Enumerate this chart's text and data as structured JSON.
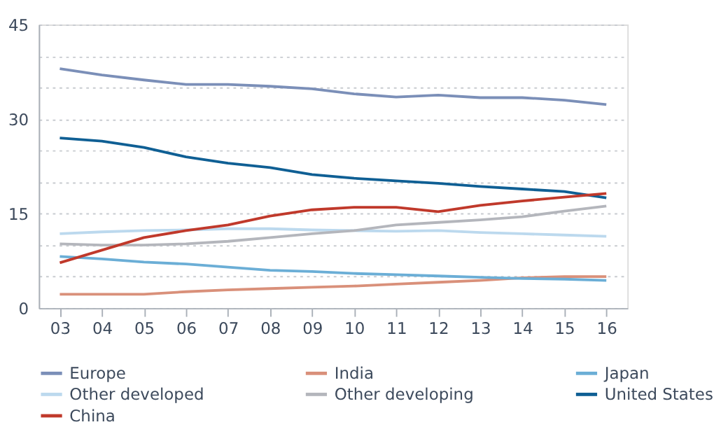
{
  "chart_data": {
    "type": "line",
    "categories": [
      "03",
      "04",
      "05",
      "06",
      "07",
      "08",
      "09",
      "10",
      "11",
      "12",
      "13",
      "14",
      "15",
      "16"
    ],
    "ylim": [
      0,
      45
    ],
    "yticks": [
      0,
      {
        "value": 5,
        "label": null
      },
      {
        "value": 10,
        "label": null
      },
      15,
      {
        "value": 20,
        "label": null
      },
      {
        "value": 25,
        "label": null
      },
      30,
      {
        "value": 35,
        "label": null
      },
      {
        "value": 40,
        "label": null
      },
      45
    ],
    "grid": "y",
    "legend": "bottom",
    "marker": "none",
    "line_style": "solid",
    "series": [
      {
        "name": "Europe",
        "color": "#7b8fb8",
        "values": [
          38,
          37,
          36.2,
          35.5,
          35.5,
          35.2,
          34.8,
          34,
          33.5,
          33.8,
          33.4,
          33.4,
          33,
          32.3
        ]
      },
      {
        "name": "India",
        "color": "#d9907a",
        "values": [
          2.2,
          2.2,
          2.2,
          2.6,
          2.9,
          3.1,
          3.3,
          3.5,
          3.8,
          4.1,
          4.4,
          4.8,
          5,
          5
        ]
      },
      {
        "name": "Japan",
        "color": "#6baed6",
        "values": [
          8.2,
          7.8,
          7.3,
          7.0,
          6.5,
          6,
          5.8,
          5.5,
          5.3,
          5.1,
          4.9,
          4.7,
          4.6,
          4.4
        ]
      },
      {
        "name": "Other developed",
        "color": "#bcd9ee",
        "values": [
          11.8,
          12.1,
          12.3,
          12.4,
          12.6,
          12.6,
          12.4,
          12.3,
          12.2,
          12.3,
          12,
          11.8,
          11.6,
          11.4
        ]
      },
      {
        "name": "Other developing",
        "color": "#b4b6bc",
        "values": [
          10.2,
          10,
          10,
          10.2,
          10.6,
          11.2,
          11.8,
          12.3,
          13.2,
          13.6,
          14,
          14.5,
          15.4,
          16.2
        ]
      },
      {
        "name": "United States",
        "color": "#0f5f94",
        "values": [
          27,
          26.5,
          25.5,
          24,
          23,
          22.3,
          21.2,
          20.6,
          20.2,
          19.8,
          19.3,
          18.9,
          18.5,
          17.5
        ]
      },
      {
        "name": "China",
        "color": "#c0392b",
        "values": [
          7.2,
          9.2,
          11.2,
          12.3,
          13.2,
          14.6,
          15.6,
          16,
          16,
          15.3,
          16.3,
          17,
          17.6,
          18.2
        ]
      }
    ]
  }
}
